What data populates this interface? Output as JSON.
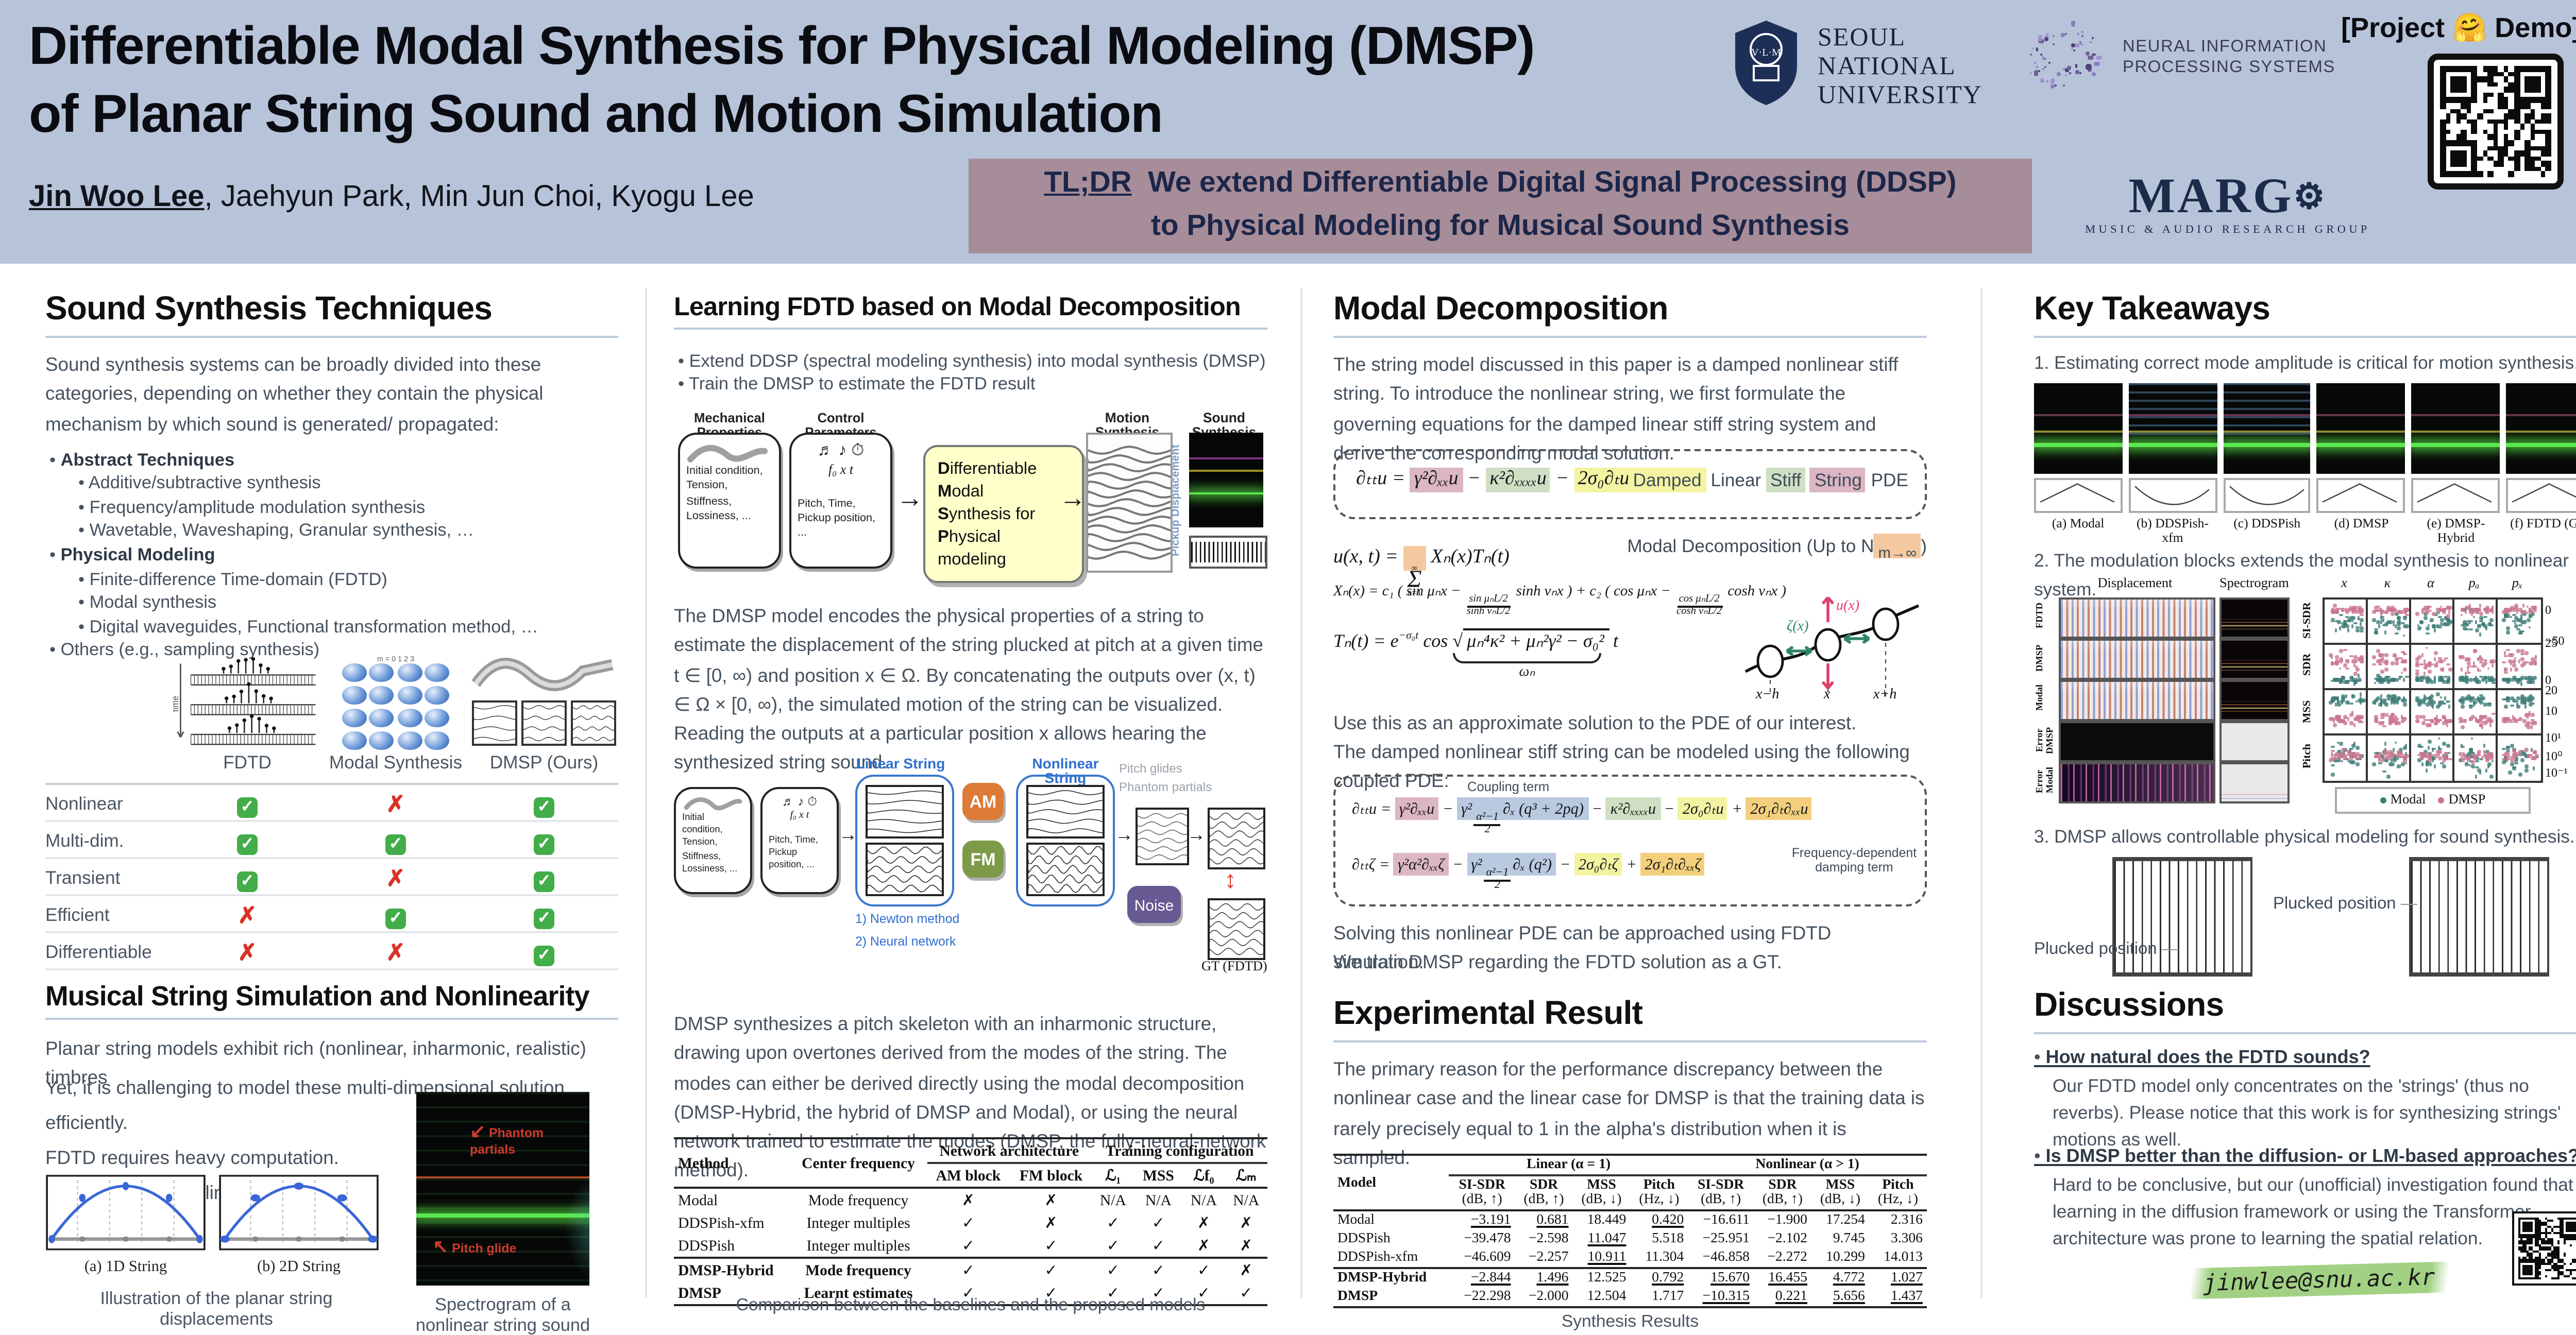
{
  "header": {
    "title_line1": "Differentiable Modal Synthesis for Physical Modeling (DMSP)",
    "title_line2": "of Planar String Sound and Motion Simulation",
    "author_lead": "Jin Woo Lee",
    "authors_rest": ", Jaehyun Park, Min Jun Choi, Kyogu Lee",
    "tldr_label": "TL;DR",
    "tldr_line1": "We extend Differentiable Digital Signal Processing (DDSP)",
    "tldr_line2": "to Physical Modeling for Musical Sound Synthesis",
    "project_demo": "[Project 🤗 Demo]",
    "snu_lines": [
      "SEOUL",
      "NATIONAL",
      "UNIVERSITY"
    ],
    "snu_motto": "VERITAS LUX MEA",
    "neurips_line1": "NEURAL INFORMATION",
    "neurips_line2": "PROCESSING SYSTEMS",
    "marg_name": "MAR",
    "marg_g": "G",
    "marg_sub": "MUSIC & AUDIO RESEARCH GROUP"
  },
  "col1": {
    "heading": "Sound Synthesis Techniques",
    "intro": "Sound synthesis systems can be broadly divided into these categories, depending on whether they contain the physical mechanism by which sound is generated/ propagated:",
    "bullets": [
      {
        "text": "Abstract Techniques",
        "bold": true,
        "level": 1
      },
      {
        "text": "Additive/subtractive synthesis",
        "level": 2
      },
      {
        "text": "Frequency/amplitude modulation synthesis",
        "level": 2
      },
      {
        "text": "Wavetable, Waveshaping, Granular synthesis, …",
        "level": 2
      },
      {
        "text": "Physical Modeling",
        "bold": true,
        "level": 1
      },
      {
        "text": "Finite-difference Time-domain (FDTD)",
        "level": 2
      },
      {
        "text": "Modal synthesis",
        "level": 2
      },
      {
        "text": "Digital waveguides, Functional transformation method, …",
        "level": 2
      },
      {
        "text": "Others (e.g., sampling synthesis)",
        "level": 1
      }
    ],
    "fdtd_axis_label": "time",
    "modal_micro_label": "m = 0   1   2   3",
    "matrix": {
      "columns": [
        "FDTD",
        "Modal Synthesis",
        "DMSP (Ours)"
      ],
      "rows": [
        {
          "label": "Nonlinear",
          "marks": [
            "yes",
            "no",
            "yes"
          ]
        },
        {
          "label": "Multi-dim.",
          "marks": [
            "yes",
            "yes",
            "yes"
          ]
        },
        {
          "label": "Transient",
          "marks": [
            "yes",
            "no",
            "yes"
          ]
        },
        {
          "label": "Efficient",
          "marks": [
            "no",
            "yes",
            "yes"
          ]
        },
        {
          "label": "Differentiable",
          "marks": [
            "no",
            "no",
            "yes"
          ]
        }
      ]
    },
    "heading2": "Musical String Simulation and Nonlinearity",
    "p1": "Planar string models exhibit rich (nonlinear, inharmonic, realistic) timbres",
    "p2a": "Yet, it is challenging to model these multi-dimensional solution efficiently.",
    "p2b": "FDTD requires heavy computation.",
    "p2c": "Modal synthesis is linear by its nature.",
    "cap_1d": "(a) 1D String",
    "cap_2d": "(b) 2D String",
    "cap_ill": "Illustration of the planar string displacements",
    "ann_phantom": "Phantom partials",
    "ann_pitch": "Pitch glide",
    "cap_spec_line1": "Spectrogram of a",
    "cap_spec_line2": "nonlinear string sound"
  },
  "col2": {
    "heading": "Learning FDTD based on Modal Decomposition",
    "bullets": [
      "Extend DDSP (spectral modeling synthesis) into modal synthesis (DMSP)",
      "Train the DMSP to estimate the FDTD result"
    ],
    "pipeline": {
      "mech_title": "Mechanical Properties",
      "mech_body": "Initial condition, Tension, Stiffness, Lossiness, ...",
      "ctrl_title": "Control Parameters",
      "ctrl_symbols": "f₀    x    t",
      "ctrl_body": "Pitch, Time, Pickup position, ...",
      "dmsp_lines": [
        "Differentiable",
        "Modal",
        "Synthesis for",
        "Physical modeling"
      ],
      "out_motion": "Motion Synthesis",
      "out_sound": "Sound Synthesis",
      "pickup": "Pickup Displacement"
    },
    "para1": "The DMSP model encodes the physical properties of a string to estimate the displacement of the string plucked at pitch at a given time t ∈ [0, ∞) and position x ∈ Ω. By concatenating the outputs over (x, t) ∈ Ω × [0, ∞), the simulated motion of the string can be visualized. Reading the outputs at a particular position x allows hearing the synthesized string sound.",
    "arch": {
      "linear_label": "Linear String",
      "nonlinear_label": "Nonlinear String",
      "am": "AM",
      "fm": "FM",
      "noise": "Noise",
      "gt": "GT (FDTD)",
      "note1": "1) Newton method",
      "note2": "2) Neural network",
      "gray1": "Pitch glides",
      "gray2": "Phantom partials"
    },
    "para2": "DMSP synthesizes a pitch skeleton with an inharmonic structure, drawing upon overtones derived from the modes of the string. The modes can either be derived directly using the modal decomposition (DMSP-Hybrid, the hybrid of DMSP and Modal), or using the neural network trained to estimate the modes (DMSP, the fully-neural-network method).",
    "methods_table": {
      "h_method": "Method",
      "h_freq": "Center frequency",
      "h_net": "Network architecture",
      "h_train": "Training configuration",
      "h_am": "AM block",
      "h_fm": "FM block",
      "h_l1": "ℒ₁",
      "h_mss": "MSS",
      "h_lf0": "ℒf₀",
      "h_lm": "ℒₘ",
      "rows": [
        {
          "method": "Modal",
          "bold": false,
          "cells": [
            "Mode frequency",
            "✗",
            "✗",
            "N/A",
            "N/A",
            "N/A",
            "N/A"
          ]
        },
        {
          "method": "DDSPish-xfm",
          "bold": false,
          "cells": [
            "Integer multiples",
            "✓",
            "✗",
            "✓",
            "✓",
            "✗",
            "✗"
          ]
        },
        {
          "method": "DDSPish",
          "bold": false,
          "cells": [
            "Integer multiples",
            "✓",
            "✓",
            "✓",
            "✓",
            "✗",
            "✗"
          ]
        },
        {
          "method": "DMSP-Hybrid",
          "bold": true,
          "cells": [
            "Mode frequency",
            "✓",
            "✓",
            "✓",
            "✓",
            "✓",
            "✗"
          ]
        },
        {
          "method": "DMSP",
          "bold": true,
          "cells": [
            "Learnt estimates",
            "✓",
            "✓",
            "✓",
            "✓",
            "✓",
            "✓"
          ]
        }
      ],
      "caption": "Comparison between the baselines and the proposed models"
    }
  },
  "col3": {
    "heading": "Modal Decomposition",
    "intro": "The string model discussed in this paper is a damped nonlinear stiff string. To introduce the nonlinear string, we first formulate the governing equations for the damped linear stiff string system and derive the corresponding modal solution.",
    "eq_damped": {
      "terms": [
        {
          "t": "∂ₜₜu = "
        },
        {
          "t": "γ²∂ₓₓu",
          "hl": "pink"
        },
        {
          "t": " − "
        },
        {
          "t": "κ²∂ₓₓₓₓu",
          "hl": "green"
        },
        {
          "t": " − "
        },
        {
          "t": "2σ₀∂ₜu",
          "hl": "yellow"
        }
      ],
      "label_terms": [
        {
          "t": "Damped",
          "hl": "yellow"
        },
        {
          "t": " Linear "
        },
        {
          "t": "Stiff",
          "hl": "green"
        },
        {
          "t": " "
        },
        {
          "t": "String",
          "hl": "pink"
        },
        {
          "t": " PDE"
        }
      ]
    },
    "eq_sum": {
      "terms": [
        {
          "t": "u(x, t) = "
        },
        {
          "big": true,
          "top": "∞",
          "bot": "n=1",
          "t": "Σ",
          "hl": "peach"
        },
        {
          "t": " Xₙ(x)Tₙ(t)"
        }
      ],
      "label_terms": [
        {
          "t": "Modal Decomposition (Up to N"
        },
        {
          "t": "m→∞",
          "hl": "peach",
          "sub": true
        },
        {
          "t": ")"
        }
      ]
    },
    "eq_x": {
      "pre": "Xₙ(x) = c₁",
      "p1a": "sin μₙx −",
      "f1n": "sin μₙL/2",
      "f1d": "sinh νₙL/2",
      "p1b": "sinh νₙx",
      "mid": "+ c₂",
      "p2a": "cos μₙx −",
      "f2n": "cos μₙL/2",
      "f2d": "cosh νₙL/2",
      "p2b": "cosh νₙx"
    },
    "eq_t": {
      "pre": "Tₙ(t) = e",
      "sup": "−σ₀t",
      "mid": " cos ",
      "root": "μₙ⁴κ² + μₙ²γ² − σ₀²",
      "post": " t",
      "brace_label": "ωₙ"
    },
    "string_diagram": {
      "zeta": "ζ(x)",
      "u": "u(x)",
      "xm": "x−h",
      "x": "x",
      "xp": "x+h"
    },
    "mid1": "Use this as an approximate solution to the PDE of our interest.",
    "mid2": "The damped nonlinear stiff string can be modeled using the following coupled PDE:",
    "coupled": {
      "coupling_label": "Coupling term",
      "damping_label1": "Frequency-dependent",
      "damping_label2": "damping term",
      "eq1": [
        {
          "t": "∂ₜₜu = "
        },
        {
          "t": "γ²∂ₓₓu",
          "hl": "pink"
        },
        {
          "t": " − "
        },
        {
          "pre": "γ²",
          "fn": "α²−1",
          "fd": "2",
          "post": "∂ₓ (q³ + 2pq)",
          "hl": "blue"
        },
        {
          "t": " − "
        },
        {
          "t": "κ²∂ₓₓₓₓu",
          "hl": "green"
        },
        {
          "t": " − "
        },
        {
          "t": "2σ₀∂ₜu",
          "hl": "yellow"
        },
        {
          "t": " + "
        },
        {
          "t": "2σ₁∂ₜ∂ₓₓu",
          "hl": "orange"
        }
      ],
      "eq2": [
        {
          "t": "∂ₜₜζ = "
        },
        {
          "t": "γ²α²∂ₓₓζ",
          "hl": "pink"
        },
        {
          "t": " − "
        },
        {
          "pre": "γ²",
          "fn": "α²−1",
          "fd": "2",
          "post": "∂ₓ (q²)",
          "hl": "blue"
        },
        {
          "t": " − "
        },
        {
          "t": "2σ₀∂ₜζ",
          "hl": "yellow"
        },
        {
          "t": " + "
        },
        {
          "t": "2σ₁∂ₜ∂ₓₓζ",
          "hl": "orange"
        }
      ]
    },
    "post1": "Solving this nonlinear PDE can be approached using FDTD simulation.",
    "post2": "We train DMSP regarding the FDTD solution as a GT.",
    "heading2": "Experimental Result",
    "exp_intro": "The primary reason for the performance discrepancy between the nonlinear case and the linear case for DMSP is that the training data is rarely precisely equal to 1 in the alpha's distribution when it is sampled.",
    "results_table": {
      "h_model": "Model",
      "group1": "Linear (α = 1)",
      "group2": "Nonlinear (α > 1)",
      "metrics": [
        {
          "m": "SI-SDR",
          "u": "(dB, ↑)"
        },
        {
          "m": "SDR",
          "u": "(dB, ↑)"
        },
        {
          "m": "MSS",
          "u": "(dB, ↓)"
        },
        {
          "m": "Pitch",
          "u": "(Hz, ↓)"
        },
        {
          "m": "SI-SDR",
          "u": "(dB, ↑)"
        },
        {
          "m": "SDR",
          "u": "(dB, ↑)"
        },
        {
          "m": "MSS",
          "u": "(dB, ↓)"
        },
        {
          "m": "Pitch",
          "u": "(Hz, ↓)"
        }
      ],
      "rows": [
        {
          "model": "Modal",
          "bold": false,
          "v": [
            "−3.191",
            "0.681",
            "18.449",
            "0.420",
            "−16.611",
            "−1.900",
            "17.254",
            "2.316"
          ],
          "s": [
            "u",
            "u",
            "",
            "bu",
            "",
            "",
            "",
            ""
          ]
        },
        {
          "model": "DDSPish",
          "bold": false,
          "v": [
            "−39.478",
            "−2.598",
            "11.047",
            "5.518",
            "−25.951",
            "−2.102",
            "9.745",
            "3.306"
          ],
          "s": [
            "",
            "",
            "u",
            "",
            "",
            "",
            "",
            ""
          ]
        },
        {
          "model": "DDSPish-xfm",
          "bold": false,
          "v": [
            "−46.609",
            "−2.257",
            "10.911",
            "11.304",
            "−46.858",
            "−2.272",
            "10.299",
            "14.013"
          ],
          "s": [
            "",
            "",
            "bu",
            "",
            "",
            "",
            "",
            ""
          ]
        },
        {
          "model": "DMSP-Hybrid",
          "bold": true,
          "v": [
            "−2.844",
            "1.496",
            "12.525",
            "0.792",
            "15.670",
            "16.455",
            "4.772",
            "1.027"
          ],
          "s": [
            "bu",
            "bu",
            "",
            "u",
            "bu",
            "bu",
            "bu",
            "u"
          ]
        },
        {
          "model": "DMSP",
          "bold": true,
          "v": [
            "−22.298",
            "−2.000",
            "12.504",
            "1.717",
            "−10.315",
            "0.221",
            "5.656",
            "1.437"
          ],
          "s": [
            "",
            "",
            "",
            "",
            "u",
            "u",
            "u",
            "bu"
          ]
        }
      ],
      "caption": "Synthesis Results"
    }
  },
  "col4": {
    "heading": "Key Takeaways",
    "t1": "1. Estimating correct mode amplitude is critical for motion synthesis.",
    "panels": [
      "(a) Modal",
      "(b) DDSPish-xfm",
      "(c) DDSPish",
      "(d) DMSP",
      "(e) DMSP-Hybrid",
      "(f) FDTD (GT)"
    ],
    "t2": "2. The modulation blocks extends the modal synthesis to nonlinear system.",
    "fig2": {
      "col_disp": "Displacement",
      "col_spec": "Spectrogram",
      "row_labels": [
        "FDTD",
        "DMSP",
        "Modal",
        "Error DMSP",
        "Error Modal"
      ],
      "scatter_cols": [
        "x",
        "κ",
        "α",
        "pₐ",
        "pₓ"
      ],
      "scatter_rows": [
        "SI-SDR",
        "SDR",
        "MSS",
        "Pitch"
      ],
      "ticks": [
        {
          "row": 0,
          "f": 0.3,
          "t": "0"
        },
        {
          "row": 0,
          "f": 1.0,
          "t": "−50"
        },
        {
          "row": 1,
          "f": 0.05,
          "t": "25"
        },
        {
          "row": 1,
          "f": 0.85,
          "t": "0"
        },
        {
          "row": 2,
          "f": 0.08,
          "t": "20"
        },
        {
          "row": 2,
          "f": 0.55,
          "t": "10"
        },
        {
          "row": 3,
          "f": 0.12,
          "t": "10¹"
        },
        {
          "row": 3,
          "f": 0.5,
          "t": "10⁰"
        },
        {
          "row": 3,
          "f": 0.88,
          "t": "10⁻¹"
        }
      ],
      "legend": [
        "Modal",
        "DMSP"
      ]
    },
    "t3": "3. DMSP allows controllable physical modeling for sound synthesis.",
    "plucked_left": "Plucked position",
    "plucked_right": "Plucked position",
    "disc_heading": "Discussions",
    "qna": [
      {
        "q": "How natural does the FDTD sounds?",
        "a": "Our FDTD model only concentrates on the 'strings' (thus no reverbs). Please notice that this work is for synthesizing strings' motions as well."
      },
      {
        "q": "Is DMSP better than the diffusion- or LM-based approaches?",
        "a": "Hard to be conclusive, but our (unofficial) investigation found that learning in the diffusion framework or using the Transformer architecture was prone to learning the spatial relation."
      }
    ],
    "email": "jinwlee@snu.ac.kr"
  },
  "colors": {
    "header_bg": "#b7c3d8",
    "tldr_bg": "#a78d99",
    "tldr_text": "#1c2649",
    "check_green": "#42ad49",
    "cross_red": "#d93327",
    "am_orange": "#dd7a35",
    "fm_green": "#7d9a48",
    "noise_purple": "#675a92",
    "dmsp_yellow": "#feffc9",
    "blue_label": "#2f6fd0",
    "scatter_teal": "#3e7d78",
    "scatter_pink": "#c97590",
    "email_highlight": "#98cc76"
  }
}
